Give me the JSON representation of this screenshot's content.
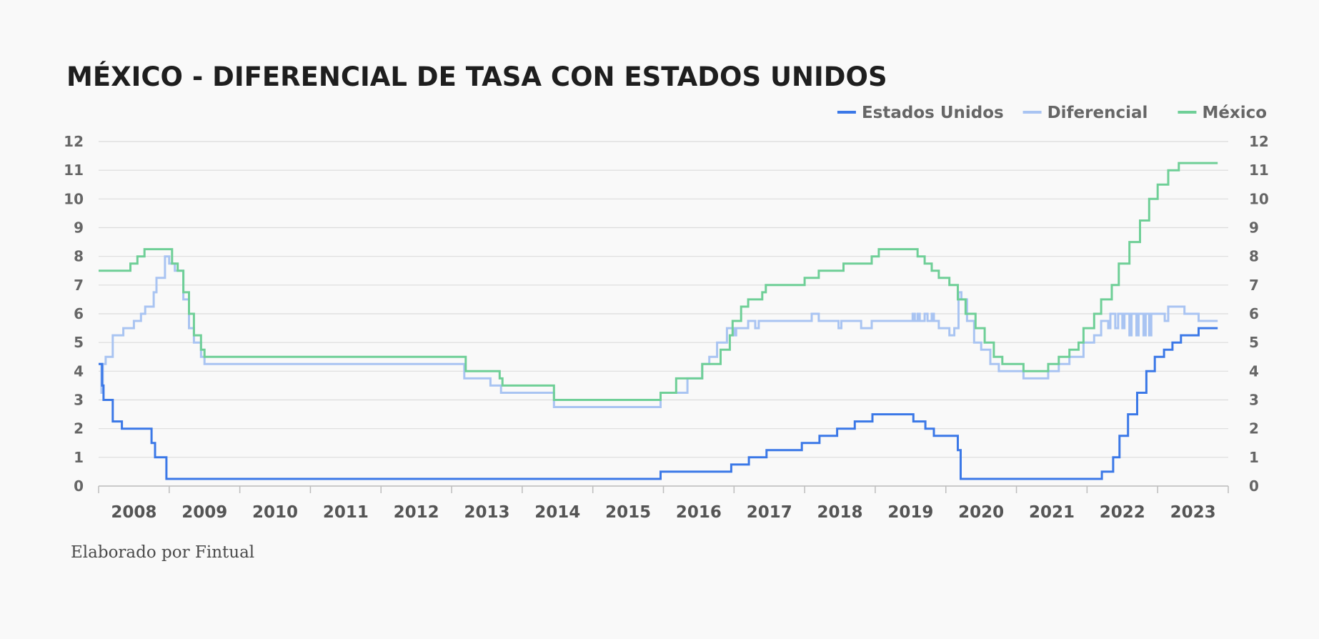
{
  "chart_data": {
    "type": "line",
    "title": "MÉXICO - DIFERENCIAL DE TASA CON ESTADOS UNIDOS",
    "footer": "Elaborado por Fintual",
    "xlabel": "",
    "ylabel": "",
    "ylim": [
      0,
      12
    ],
    "xlim": [
      2008.0,
      2024.0
    ],
    "yticks": [
      0,
      1,
      2,
      3,
      4,
      5,
      6,
      7,
      8,
      9,
      10,
      11,
      12
    ],
    "year_labels": [
      "2008",
      "2009",
      "2010",
      "2011",
      "2012",
      "2013",
      "2014",
      "2015",
      "2016",
      "2017",
      "2018",
      "2019",
      "2020",
      "2021",
      "2022",
      "2023"
    ],
    "grid": true,
    "legend_position": "top-right",
    "series": [
      {
        "name": "Estados Unidos",
        "color": "#3b78e7",
        "points": [
          [
            2008.0,
            4.25
          ],
          [
            2008.05,
            3.5
          ],
          [
            2008.07,
            3.0
          ],
          [
            2008.2,
            2.25
          ],
          [
            2008.33,
            2.0
          ],
          [
            2008.75,
            1.5
          ],
          [
            2008.8,
            1.0
          ],
          [
            2008.96,
            0.25
          ],
          [
            2015.96,
            0.5
          ],
          [
            2016.96,
            0.75
          ],
          [
            2017.21,
            1.0
          ],
          [
            2017.46,
            1.25
          ],
          [
            2017.96,
            1.5
          ],
          [
            2018.21,
            1.75
          ],
          [
            2018.46,
            2.0
          ],
          [
            2018.71,
            2.25
          ],
          [
            2018.96,
            2.5
          ],
          [
            2019.54,
            2.25
          ],
          [
            2019.71,
            2.0
          ],
          [
            2019.83,
            1.75
          ],
          [
            2020.17,
            1.25
          ],
          [
            2020.21,
            0.25
          ],
          [
            2022.21,
            0.5
          ],
          [
            2022.37,
            1.0
          ],
          [
            2022.46,
            1.75
          ],
          [
            2022.58,
            2.5
          ],
          [
            2022.71,
            3.25
          ],
          [
            2022.84,
            4.0
          ],
          [
            2022.96,
            4.5
          ],
          [
            2023.09,
            4.75
          ],
          [
            2023.21,
            5.0
          ],
          [
            2023.33,
            5.25
          ],
          [
            2023.58,
            5.5
          ],
          [
            2023.85,
            5.5
          ]
        ]
      },
      {
        "name": "Diferencial",
        "color": "#a9c4f2",
        "points": [
          [
            2008.0,
            4.25
          ],
          [
            2008.04,
            3.25
          ],
          [
            2008.06,
            4.25
          ],
          [
            2008.1,
            4.5
          ],
          [
            2008.2,
            5.25
          ],
          [
            2008.35,
            5.5
          ],
          [
            2008.5,
            5.75
          ],
          [
            2008.6,
            6.0
          ],
          [
            2008.66,
            6.25
          ],
          [
            2008.78,
            6.75
          ],
          [
            2008.82,
            7.25
          ],
          [
            2008.94,
            8.0
          ],
          [
            2009.0,
            7.75
          ],
          [
            2009.08,
            7.5
          ],
          [
            2009.2,
            6.5
          ],
          [
            2009.28,
            5.5
          ],
          [
            2009.35,
            5.0
          ],
          [
            2009.45,
            4.5
          ],
          [
            2009.5,
            4.25
          ],
          [
            2012.9,
            4.25
          ],
          [
            2013.18,
            3.75
          ],
          [
            2013.55,
            3.5
          ],
          [
            2013.7,
            3.25
          ],
          [
            2014.45,
            2.75
          ],
          [
            2015.96,
            3.25
          ],
          [
            2016.18,
            3.25
          ],
          [
            2016.34,
            3.75
          ],
          [
            2016.45,
            3.75
          ],
          [
            2016.55,
            4.25
          ],
          [
            2016.65,
            4.5
          ],
          [
            2016.76,
            5.0
          ],
          [
            2016.9,
            5.5
          ],
          [
            2017.0,
            5.25
          ],
          [
            2017.03,
            5.5
          ],
          [
            2017.1,
            5.5
          ],
          [
            2017.2,
            5.75
          ],
          [
            2017.3,
            5.5
          ],
          [
            2017.35,
            5.75
          ],
          [
            2017.9,
            5.75
          ],
          [
            2018.1,
            6.0
          ],
          [
            2018.2,
            5.75
          ],
          [
            2018.45,
            5.75
          ],
          [
            2018.48,
            5.5
          ],
          [
            2018.52,
            5.75
          ],
          [
            2018.75,
            5.75
          ],
          [
            2018.8,
            5.5
          ],
          [
            2018.95,
            5.75
          ],
          [
            2019.5,
            5.75
          ],
          [
            2019.53,
            6.0
          ],
          [
            2019.56,
            5.75
          ],
          [
            2019.6,
            6.0
          ],
          [
            2019.63,
            5.75
          ],
          [
            2019.7,
            6.0
          ],
          [
            2019.74,
            5.75
          ],
          [
            2019.8,
            6.0
          ],
          [
            2019.83,
            5.75
          ],
          [
            2019.9,
            5.5
          ],
          [
            2020.05,
            5.25
          ],
          [
            2020.12,
            5.5
          ],
          [
            2020.18,
            6.75
          ],
          [
            2020.22,
            6.5
          ],
          [
            2020.3,
            5.75
          ],
          [
            2020.4,
            5.0
          ],
          [
            2020.5,
            4.75
          ],
          [
            2020.63,
            4.25
          ],
          [
            2020.75,
            4.0
          ],
          [
            2021.1,
            3.75
          ],
          [
            2021.45,
            4.0
          ],
          [
            2021.6,
            4.25
          ],
          [
            2021.75,
            4.5
          ],
          [
            2021.95,
            5.0
          ],
          [
            2022.1,
            5.25
          ],
          [
            2022.2,
            5.75
          ],
          [
            2022.3,
            5.5
          ],
          [
            2022.33,
            6.0
          ],
          [
            2022.4,
            5.5
          ],
          [
            2022.44,
            6.0
          ],
          [
            2022.5,
            5.5
          ],
          [
            2022.53,
            6.0
          ],
          [
            2022.6,
            5.25
          ],
          [
            2022.63,
            6.0
          ],
          [
            2022.7,
            5.25
          ],
          [
            2022.73,
            6.0
          ],
          [
            2022.8,
            5.25
          ],
          [
            2022.83,
            6.0
          ],
          [
            2022.88,
            5.25
          ],
          [
            2022.91,
            6.0
          ],
          [
            2023.0,
            6.0
          ],
          [
            2023.1,
            5.75
          ],
          [
            2023.15,
            6.25
          ],
          [
            2023.38,
            6.0
          ],
          [
            2023.58,
            5.75
          ],
          [
            2023.85,
            5.75
          ]
        ]
      },
      {
        "name": "México",
        "color": "#6fcf97",
        "points": [
          [
            2008.0,
            7.5
          ],
          [
            2008.45,
            7.75
          ],
          [
            2008.55,
            8.0
          ],
          [
            2008.65,
            8.25
          ],
          [
            2009.04,
            7.75
          ],
          [
            2009.12,
            7.5
          ],
          [
            2009.2,
            6.75
          ],
          [
            2009.28,
            6.0
          ],
          [
            2009.35,
            5.25
          ],
          [
            2009.45,
            4.75
          ],
          [
            2009.5,
            4.5
          ],
          [
            2013.2,
            4.0
          ],
          [
            2013.68,
            3.75
          ],
          [
            2013.72,
            3.5
          ],
          [
            2014.45,
            3.0
          ],
          [
            2015.96,
            3.25
          ],
          [
            2016.18,
            3.75
          ],
          [
            2016.55,
            4.25
          ],
          [
            2016.81,
            4.75
          ],
          [
            2016.94,
            5.25
          ],
          [
            2016.98,
            5.75
          ],
          [
            2017.1,
            6.25
          ],
          [
            2017.2,
            6.5
          ],
          [
            2017.4,
            6.75
          ],
          [
            2017.45,
            7.0
          ],
          [
            2018.0,
            7.25
          ],
          [
            2018.2,
            7.5
          ],
          [
            2018.55,
            7.75
          ],
          [
            2018.95,
            8.0
          ],
          [
            2019.05,
            8.25
          ],
          [
            2019.6,
            8.0
          ],
          [
            2019.7,
            7.75
          ],
          [
            2019.8,
            7.5
          ],
          [
            2019.9,
            7.25
          ],
          [
            2020.05,
            7.0
          ],
          [
            2020.17,
            6.5
          ],
          [
            2020.28,
            6.0
          ],
          [
            2020.42,
            5.5
          ],
          [
            2020.55,
            5.0
          ],
          [
            2020.68,
            4.5
          ],
          [
            2020.8,
            4.25
          ],
          [
            2021.1,
            4.0
          ],
          [
            2021.45,
            4.25
          ],
          [
            2021.6,
            4.5
          ],
          [
            2021.75,
            4.75
          ],
          [
            2021.88,
            5.0
          ],
          [
            2021.95,
            5.5
          ],
          [
            2022.1,
            6.0
          ],
          [
            2022.2,
            6.5
          ],
          [
            2022.35,
            7.0
          ],
          [
            2022.45,
            7.75
          ],
          [
            2022.6,
            8.5
          ],
          [
            2022.75,
            9.25
          ],
          [
            2022.88,
            10.0
          ],
          [
            2023.0,
            10.5
          ],
          [
            2023.15,
            11.0
          ],
          [
            2023.3,
            11.25
          ],
          [
            2023.85,
            11.25
          ]
        ]
      }
    ]
  }
}
